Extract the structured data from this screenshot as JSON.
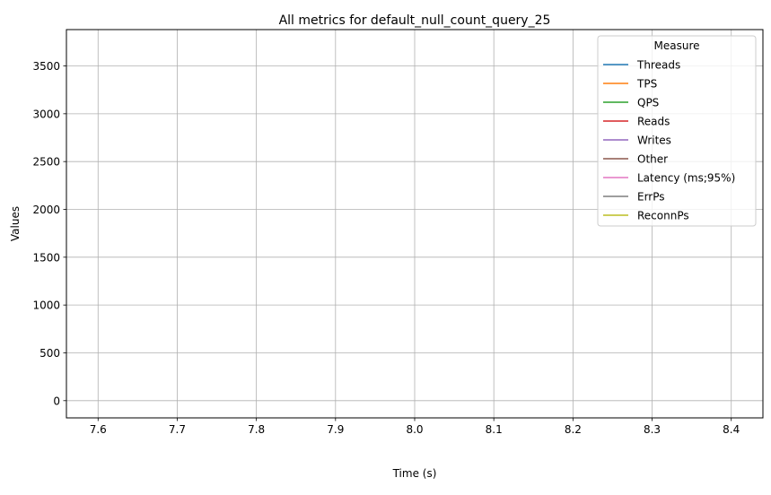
{
  "chart_data": {
    "type": "line",
    "title": "All metrics for default_null_count_query_25",
    "xlabel": "Time (s)",
    "ylabel": "Values",
    "xlim": [
      7.56,
      8.44
    ],
    "ylim": [
      -180,
      3880
    ],
    "xticks": [
      "7.6",
      "7.7",
      "7.8",
      "7.9",
      "8.0",
      "8.1",
      "8.2",
      "8.3",
      "8.4"
    ],
    "yticks": [
      "0",
      "500",
      "1000",
      "1500",
      "2000",
      "2500",
      "3000",
      "3500"
    ],
    "grid": true,
    "legend": {
      "title": "Measure",
      "placement": "top-right"
    },
    "series": [
      {
        "name": "Threads",
        "color": "#1f77b4",
        "x": [],
        "values": []
      },
      {
        "name": "TPS",
        "color": "#ff7f0e",
        "x": [],
        "values": []
      },
      {
        "name": "QPS",
        "color": "#2ca02c",
        "x": [],
        "values": []
      },
      {
        "name": "Reads",
        "color": "#d62728",
        "x": [],
        "values": []
      },
      {
        "name": "Writes",
        "color": "#9467bd",
        "x": [],
        "values": []
      },
      {
        "name": "Other",
        "color": "#8c564b",
        "x": [],
        "values": []
      },
      {
        "name": "Latency (ms;95%)",
        "color": "#e377c2",
        "x": [],
        "values": []
      },
      {
        "name": "ErrPs",
        "color": "#7f7f7f",
        "x": [],
        "values": []
      },
      {
        "name": "ReconnPs",
        "color": "#bcbd22",
        "x": [],
        "values": []
      }
    ]
  }
}
